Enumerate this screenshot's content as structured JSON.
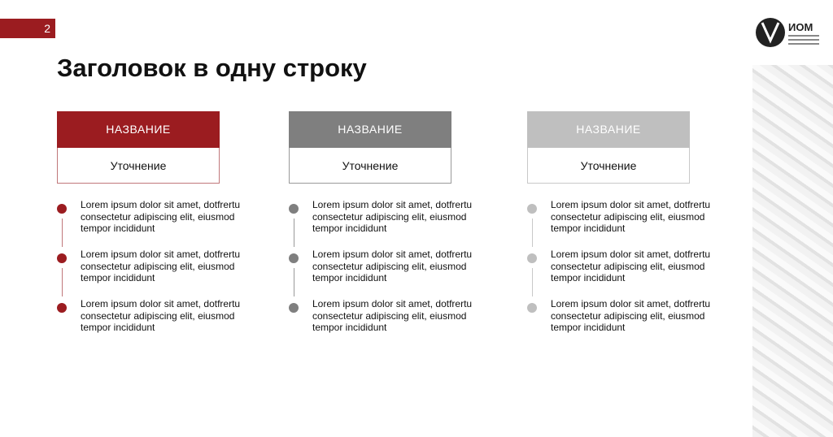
{
  "page_number": "2",
  "title": "Заголовок в одну строку",
  "logo": {
    "name": "ИОМ",
    "tagline": "институт отраслевого менеджмента"
  },
  "columns": [
    {
      "header": "НАЗВАНИЕ",
      "subtitle": "Уточнение",
      "color": "#9b1c20",
      "border": "#c0787a",
      "items": [
        "Lorem ipsum dolor sit amet, dotfrertu consectetur adipiscing elit, eiusmod tempor incididunt",
        "Lorem ipsum dolor sit amet, dotfrertu consectetur adipiscing elit, eiusmod tempor incididunt",
        "Lorem ipsum dolor sit amet, dotfrertu consectetur adipiscing elit, eiusmod tempor incididunt"
      ]
    },
    {
      "header": "НАЗВАНИЕ",
      "subtitle": "Уточнение",
      "color": "#7f7f7f",
      "border": "#9a9a9a",
      "items": [
        "Lorem ipsum dolor sit amet, dotfrertu consectetur adipiscing elit, eiusmod tempor incididunt",
        "Lorem ipsum dolor sit amet, dotfrertu consectetur adipiscing elit, eiusmod tempor incididunt",
        "Lorem ipsum dolor sit amet, dotfrertu consectetur adipiscing elit, eiusmod tempor incididunt"
      ]
    },
    {
      "header": "НАЗВАНИЕ",
      "subtitle": "Уточнение",
      "color": "#bfbfbf",
      "border": "#c8c8c8",
      "items": [
        "Lorem ipsum dolor sit amet, dotfrertu consectetur adipiscing elit, eiusmod tempor incididunt",
        "Lorem ipsum dolor sit amet, dotfrertu consectetur adipiscing elit, eiusmod tempor incididunt",
        "Lorem ipsum dolor sit amet, dotfrertu consectetur adipiscing elit, eiusmod tempor incididunt"
      ]
    }
  ]
}
